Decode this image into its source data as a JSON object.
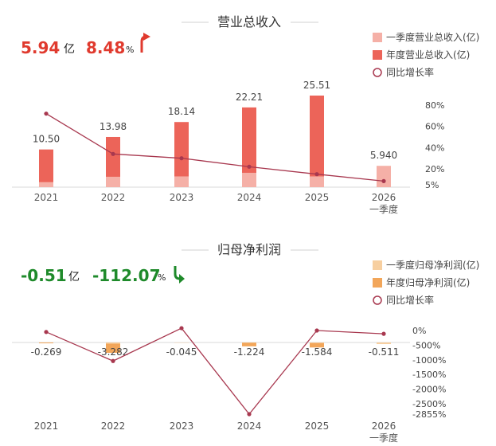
{
  "colors": {
    "q1_revenue": "#f5b0a7",
    "annual_revenue": "#ec6459",
    "q1_profit": "#f7cfa0",
    "annual_profit": "#f2a65a",
    "growth_line": "#a8384f",
    "up": "#e03a2e",
    "down": "#1e8a2a"
  },
  "revenue": {
    "title": "营业总收入",
    "value": "5.94",
    "unit": "亿",
    "growth": "8.48",
    "growth_unit": "%",
    "arrow": "up-arrow-icon",
    "legend": [
      "一季度营业总收入(亿)",
      "年度营业总收入(亿)",
      "同比增长率"
    ],
    "right_axis_labels": [
      "80%",
      "60%",
      "40%",
      "20%",
      "5%"
    ]
  },
  "profit": {
    "title": "归母净利润",
    "value": "-0.51",
    "unit": "亿",
    "growth": "-112.07",
    "growth_unit": "%",
    "arrow": "down-arrow-icon",
    "legend": [
      "一季度归母净利润(亿)",
      "年度归母净利润(亿)",
      "同比增长率"
    ],
    "right_axis_labels": [
      "0%",
      "-500%",
      "-1000%",
      "-1500%",
      "-2000%",
      "-2500%",
      "-2855%"
    ]
  },
  "chart_data": [
    {
      "type": "bar",
      "title": "营业总收入",
      "categories": [
        "2021",
        "2022",
        "2023",
        "2024",
        "2025",
        "2026\n一季度"
      ],
      "series": [
        {
          "name": "一季度营业总收入(亿)",
          "values": [
            1.4,
            2.9,
            3.0,
            4.0,
            3.0,
            5.94
          ]
        },
        {
          "name": "年度营业总收入(亿)",
          "values": [
            10.5,
            13.98,
            18.14,
            22.21,
            25.51,
            null
          ]
        },
        {
          "name": "同比增长率",
          "type": "line",
          "axis": "right",
          "values": [
            72,
            34,
            30,
            22,
            15,
            8.48
          ]
        }
      ],
      "data_labels": [
        "10.50",
        "13.98",
        "18.14",
        "22.21",
        "25.51",
        "5.940"
      ],
      "y2_ticks": [
        80,
        60,
        40,
        20,
        5
      ],
      "y2_range": [
        5,
        80
      ]
    },
    {
      "type": "bar",
      "title": "归母净利润",
      "categories": [
        "2021",
        "2022",
        "2023",
        "2024",
        "2025",
        "2026\n一季度"
      ],
      "series": [
        {
          "name": "一季度归母净利润(亿)",
          "values": [
            -0.05,
            -0.4,
            -0.03,
            -0.1,
            -0.2,
            -0.511
          ]
        },
        {
          "name": "年度归母净利润(亿)",
          "values": [
            -0.269,
            -3.282,
            -0.045,
            -1.224,
            -1.584,
            null
          ]
        },
        {
          "name": "同比增长率",
          "type": "line",
          "axis": "right",
          "values": [
            -50,
            -1040,
            80,
            -2855,
            0,
            -112.07
          ]
        }
      ],
      "data_labels": [
        "-0.269",
        "-3.282",
        "-0.045",
        "-1.224",
        "-1.584",
        "-0.511"
      ],
      "y2_ticks": [
        0,
        -500,
        -1000,
        -1500,
        -2000,
        -2500,
        -2855
      ],
      "y2_range": [
        -2855,
        0
      ]
    }
  ]
}
